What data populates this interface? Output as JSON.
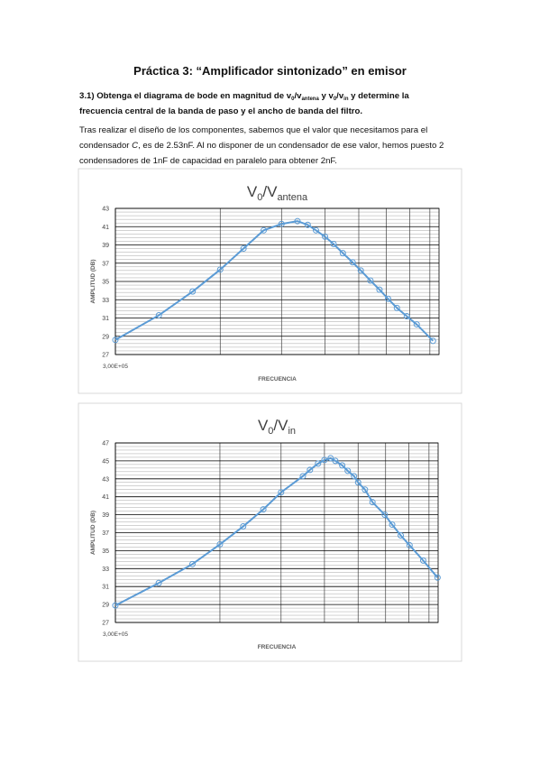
{
  "document": {
    "title": "Práctica 3: “Amplificador sintonizado” en emisor",
    "task": {
      "lines": [
        [
          {
            "text": "3.1) Obtenga el diagrama de bode en magnitud de v"
          },
          {
            "text": "0",
            "sub": true
          },
          {
            "text": "/v"
          },
          {
            "text": "antena",
            "sub": true
          },
          {
            "text": " y v"
          },
          {
            "text": "0",
            "sub": true
          },
          {
            "text": "/v"
          },
          {
            "text": "in",
            "sub": true
          },
          {
            "text": " y determine la"
          }
        ],
        [
          {
            "text": "frecuencia central de la banda de paso y el ancho de banda del filtro."
          }
        ]
      ]
    },
    "paragraph": {
      "lines": [
        [
          {
            "text": "Tras realizar el diseño de los componentes, sabemos que el valor que necesitamos para el"
          }
        ],
        [
          {
            "text": "condensador "
          },
          {
            "text": "C",
            "italic": true
          },
          {
            "text": ", es de 2.53nF. Al no disponer de un condensador de ese valor, hemos puesto 2"
          }
        ],
        [
          {
            "text": "condensadores de 1nF de capacidad en paralelo para obtener 2nF."
          }
        ]
      ]
    }
  },
  "chart_data": [
    {
      "type": "line",
      "title_parts": [
        {
          "text": "V"
        },
        {
          "text": "0",
          "sub": true
        },
        {
          "text": "/V"
        },
        {
          "text": "antena",
          "sub": true
        }
      ],
      "xlabel": "FRECUENCIA",
      "ylabel": "AMPLITUD (DB)",
      "x": [
        300000,
        400000,
        500000,
        600000,
        700000,
        800000,
        900000,
        1000000,
        1070000,
        1130000,
        1200000,
        1270000,
        1350000,
        1440000,
        1520000,
        1620000,
        1720000,
        1820000,
        1930000,
        2060000,
        2200000,
        2450000
      ],
      "values": [
        28.6,
        31.3,
        33.9,
        36.3,
        38.6,
        40.6,
        41.3,
        41.6,
        41.2,
        40.6,
        39.9,
        39.1,
        38.1,
        37.1,
        36.2,
        35.1,
        34.1,
        33.1,
        32.1,
        31.2,
        30.3,
        28.5
      ],
      "color": "#5b9bd5",
      "xscale": "log",
      "grid": true,
      "xlim": [
        300000,
        2550000
      ],
      "xticks": [
        {
          "value": 300000,
          "label": "3,00E+05"
        }
      ],
      "ylim": [
        27,
        43
      ],
      "yticks": [
        27,
        29,
        31,
        33,
        35,
        37,
        39,
        41,
        43
      ]
    },
    {
      "type": "line",
      "title_parts": [
        {
          "text": "V"
        },
        {
          "text": "0",
          "sub": true
        },
        {
          "text": "/V"
        },
        {
          "text": "in",
          "sub": true
        }
      ],
      "xlabel": "FRECUENCIA",
      "ylabel": "AMPLITUD (DB)",
      "x": [
        300000,
        400000,
        500000,
        600000,
        700000,
        800000,
        900000,
        1040000,
        1090000,
        1150000,
        1200000,
        1250000,
        1290000,
        1350000,
        1400000,
        1460000,
        1500000,
        1570000,
        1650000,
        1790000,
        1880000,
        1990000,
        2110000,
        2310000,
        2540000
      ],
      "values": [
        28.9,
        31.4,
        33.5,
        35.7,
        37.7,
        39.6,
        41.5,
        43.3,
        44.0,
        44.7,
        45.1,
        45.3,
        45.0,
        44.5,
        43.9,
        43.3,
        42.6,
        41.8,
        40.4,
        39.0,
        37.9,
        36.7,
        35.6,
        33.9,
        32.0
      ],
      "color": "#5b9bd5",
      "xscale": "log",
      "grid": true,
      "xlim": [
        300000,
        2550000
      ],
      "xticks": [
        {
          "value": 300000,
          "label": "3,00E+05"
        }
      ],
      "ylim": [
        27,
        47
      ],
      "yticks": [
        27,
        29,
        31,
        33,
        35,
        37,
        39,
        41,
        43,
        45,
        47
      ]
    }
  ]
}
